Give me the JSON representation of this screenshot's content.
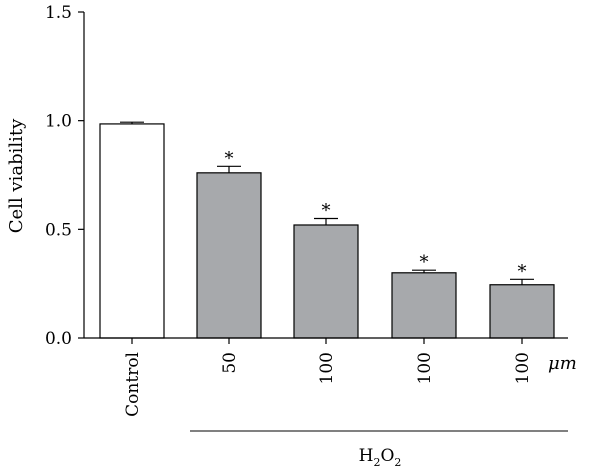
{
  "chart_data": {
    "type": "bar",
    "categories": [
      "Control",
      "50",
      "100",
      "100",
      "100"
    ],
    "values": [
      0.985,
      0.76,
      0.52,
      0.3,
      0.245
    ],
    "errors": [
      0.008,
      0.03,
      0.03,
      0.012,
      0.025
    ],
    "significant": [
      false,
      true,
      true,
      true,
      true
    ],
    "significance_marker": "*",
    "bar_colors": [
      "#ffffff",
      "#a7a9ac",
      "#a7a9ac",
      "#a7a9ac",
      "#a7a9ac"
    ],
    "ylabel": "Cell viability",
    "ylim": [
      0,
      1.5
    ],
    "yticks": [
      0,
      0.5,
      1.0,
      1.5
    ],
    "ytick_labels": [
      "0.0",
      "0.5",
      "1.0",
      "1.5"
    ],
    "xunit": "μm",
    "group_label_main": "H",
    "group_label_sub1": "2",
    "group_label_mid": "O",
    "group_label_sub2": "2",
    "grid": false
  }
}
